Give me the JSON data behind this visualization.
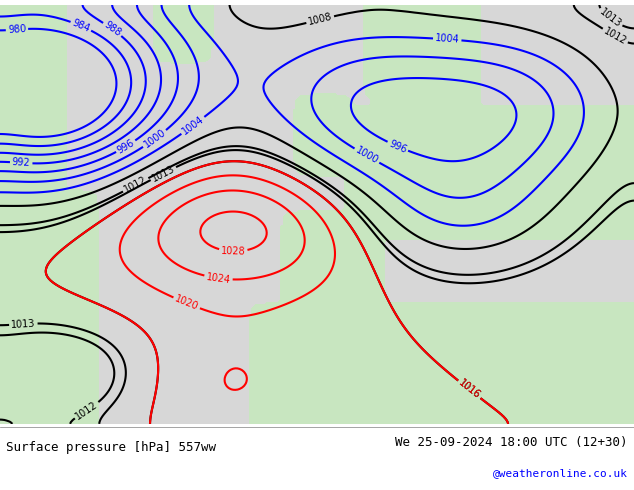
{
  "title_left": "Surface pressure [hPa] 557ww",
  "title_right": "We 25-09-2024 18:00 UTC (12+30)",
  "credit": "@weatheronline.co.uk",
  "background_color": "#d8d8d8",
  "map_bg": "#d8d8d8",
  "land_color": "#c8e6c0",
  "sea_color": "#d8d8d8",
  "contour_colors": {
    "red": "#ff0000",
    "blue": "#0000ff",
    "black": "#000000"
  },
  "figsize": [
    6.34,
    4.9
  ],
  "dpi": 100,
  "bottom_bar_color": "#ffffff",
  "credit_color": "#0000ff"
}
